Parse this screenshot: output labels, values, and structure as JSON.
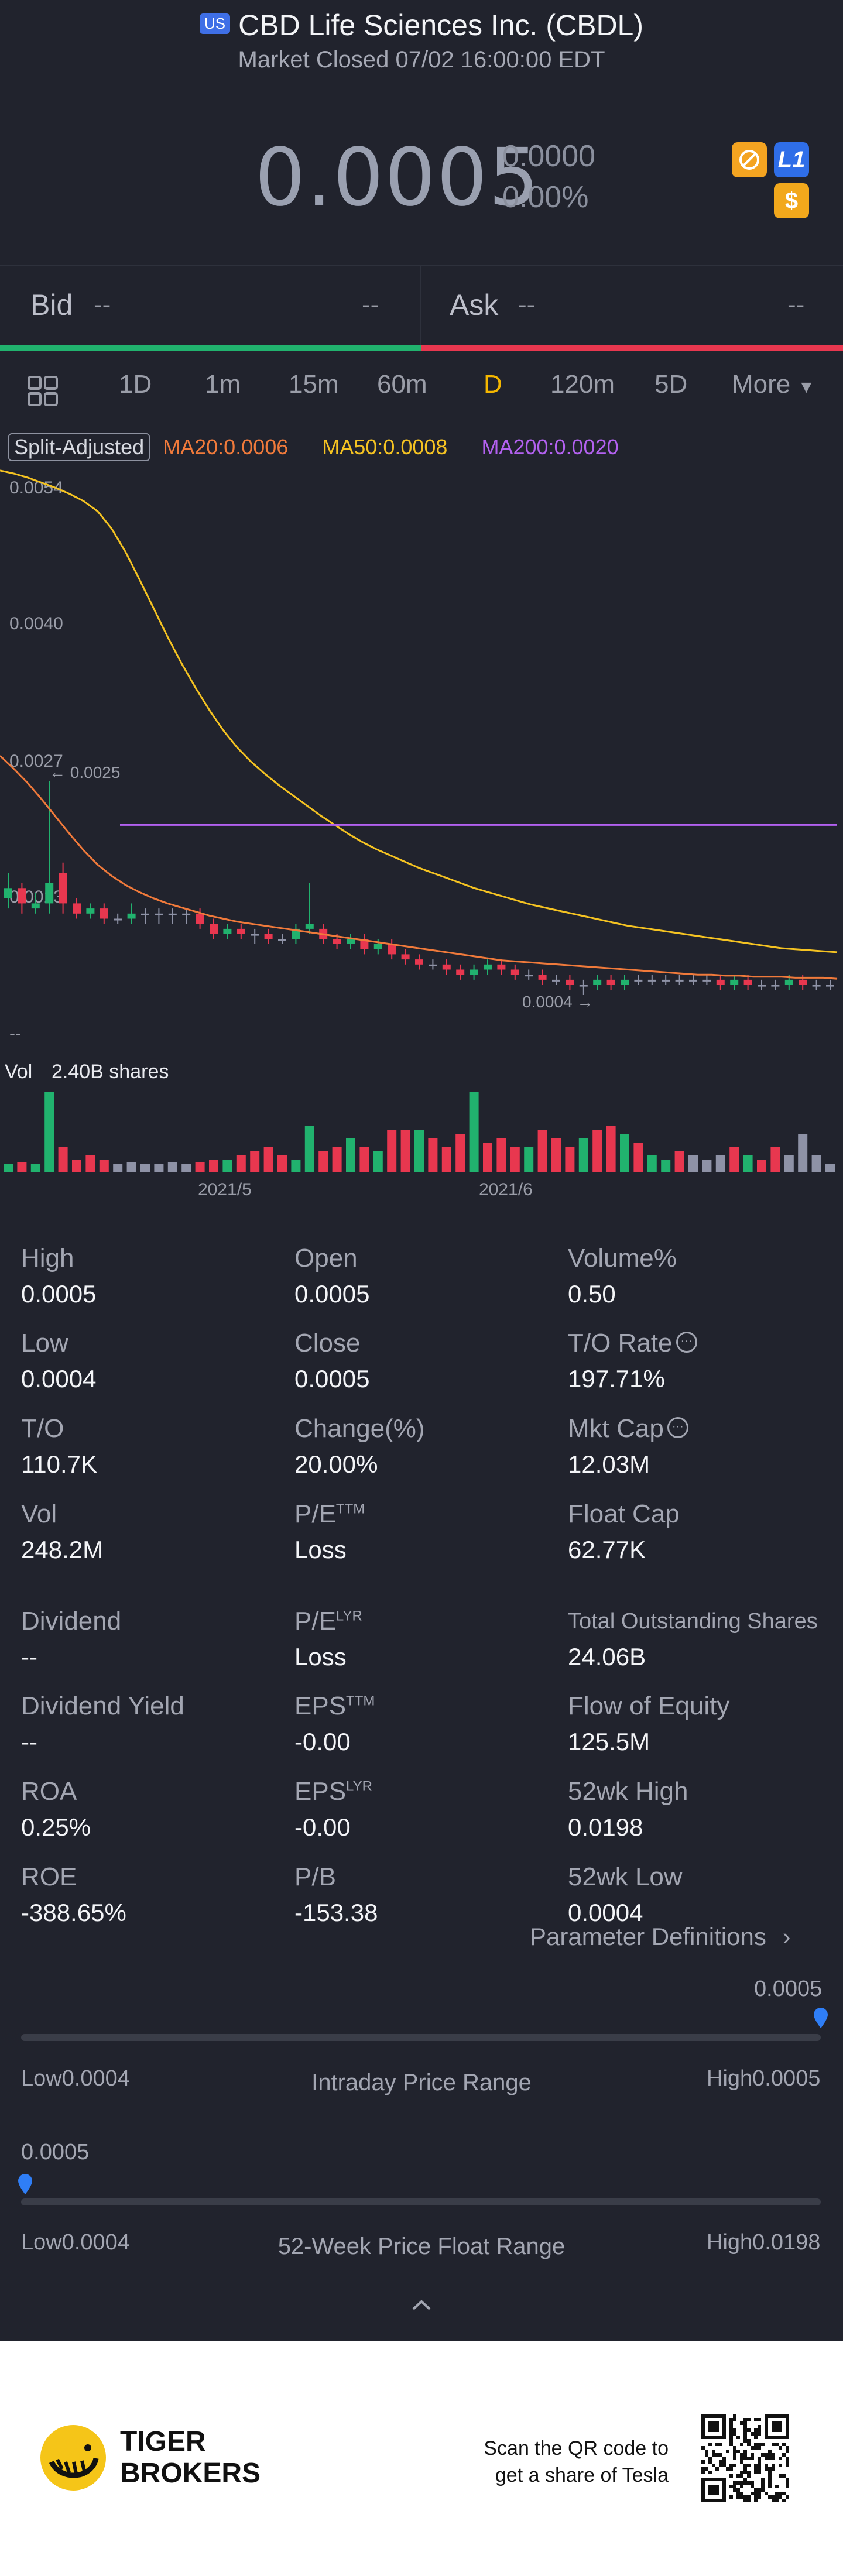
{
  "header": {
    "market_badge": "US",
    "title": "CBD Life Sciences Inc. (CBDL)",
    "status": "Market Closed 07/02 16:00:00 EDT"
  },
  "quote": {
    "price": "0.0005",
    "change": "0.0000",
    "change_pct": "0.00%",
    "badges": [
      "no-short-icon",
      "L1",
      "$"
    ],
    "badge_colors": [
      "#f4a421",
      "#2f6ee8",
      "#f2a81c"
    ]
  },
  "bidask": {
    "bid_label": "Bid",
    "bid_price": "--",
    "bid_size": "--",
    "ask_label": "Ask",
    "ask_price": "--",
    "ask_size": "--"
  },
  "tabs": {
    "items": [
      "1D",
      "1m",
      "15m",
      "60m",
      "D",
      "120m",
      "5D",
      "More"
    ],
    "active": "D"
  },
  "indicators": {
    "split": "Split-Adjusted",
    "ma20": "MA20:0.0006",
    "ma50": "MA50:0.0008",
    "ma200": "MA200:0.0020",
    "colors": {
      "ma20": "#f07a3b",
      "ma50": "#f5c322",
      "ma200": "#b361f0",
      "up": "#21b26e",
      "down": "#e8374f",
      "flat": "#8e92a6"
    }
  },
  "chart_data": {
    "type": "candlestick",
    "y_ticks": [
      "0.0054",
      "0.0040",
      "0.0027",
      "0.0013"
    ],
    "y_range": [
      0.0004,
      0.0054
    ],
    "high_marker": "0.0025",
    "low_marker": "0.0004",
    "x_ticks": [
      "2021/5",
      "2021/6"
    ],
    "empty_label": "--",
    "volume_label": "Vol",
    "volume_value": "2.40B shares",
    "ma200_level": 0.00207,
    "candles": [
      {
        "o": 0.00135,
        "c": 0.00145,
        "h": 0.0016,
        "l": 0.00125
      },
      {
        "o": 0.00145,
        "c": 0.0013,
        "h": 0.0015,
        "l": 0.0012
      },
      {
        "o": 0.00125,
        "c": 0.0013,
        "h": 0.0014,
        "l": 0.0012
      },
      {
        "o": 0.0013,
        "c": 0.0015,
        "h": 0.0025,
        "l": 0.0012
      },
      {
        "o": 0.0016,
        "c": 0.0013,
        "h": 0.0017,
        "l": 0.0012
      },
      {
        "o": 0.0013,
        "c": 0.0012,
        "h": 0.00135,
        "l": 0.00115
      },
      {
        "o": 0.0012,
        "c": 0.00125,
        "h": 0.0013,
        "l": 0.00115
      },
      {
        "o": 0.00125,
        "c": 0.00115,
        "h": 0.0013,
        "l": 0.0011
      },
      {
        "o": 0.00115,
        "c": 0.00115,
        "h": 0.0012,
        "l": 0.0011
      },
      {
        "o": 0.00115,
        "c": 0.0012,
        "h": 0.0013,
        "l": 0.0011
      },
      {
        "o": 0.0012,
        "c": 0.0012,
        "h": 0.00125,
        "l": 0.0011
      },
      {
        "o": 0.0012,
        "c": 0.0012,
        "h": 0.00125,
        "l": 0.0011
      },
      {
        "o": 0.0012,
        "c": 0.0012,
        "h": 0.00125,
        "l": 0.0011
      },
      {
        "o": 0.0012,
        "c": 0.0012,
        "h": 0.00125,
        "l": 0.0011
      },
      {
        "o": 0.0012,
        "c": 0.0011,
        "h": 0.00125,
        "l": 0.00105
      },
      {
        "o": 0.0011,
        "c": 0.001,
        "h": 0.00115,
        "l": 0.00095
      },
      {
        "o": 0.001,
        "c": 0.00105,
        "h": 0.0011,
        "l": 0.00095
      },
      {
        "o": 0.00105,
        "c": 0.001,
        "h": 0.0011,
        "l": 0.00095
      },
      {
        "o": 0.001,
        "c": 0.001,
        "h": 0.00105,
        "l": 0.0009
      },
      {
        "o": 0.001,
        "c": 0.00095,
        "h": 0.00105,
        "l": 0.0009
      },
      {
        "o": 0.00095,
        "c": 0.00095,
        "h": 0.001,
        "l": 0.0009
      },
      {
        "o": 0.00095,
        "c": 0.00105,
        "h": 0.0011,
        "l": 0.0009
      },
      {
        "o": 0.00105,
        "c": 0.0011,
        "h": 0.0015,
        "l": 0.001
      },
      {
        "o": 0.00105,
        "c": 0.00095,
        "h": 0.0011,
        "l": 0.0009
      },
      {
        "o": 0.00095,
        "c": 0.0009,
        "h": 0.001,
        "l": 0.00085
      },
      {
        "o": 0.0009,
        "c": 0.00095,
        "h": 0.001,
        "l": 0.00085
      },
      {
        "o": 0.00095,
        "c": 0.00085,
        "h": 0.001,
        "l": 0.0008
      },
      {
        "o": 0.00085,
        "c": 0.0009,
        "h": 0.00095,
        "l": 0.0008
      },
      {
        "o": 0.0009,
        "c": 0.0008,
        "h": 0.00095,
        "l": 0.00075
      },
      {
        "o": 0.0008,
        "c": 0.00075,
        "h": 0.00085,
        "l": 0.0007
      },
      {
        "o": 0.00075,
        "c": 0.0007,
        "h": 0.0008,
        "l": 0.00065
      },
      {
        "o": 0.0007,
        "c": 0.0007,
        "h": 0.00075,
        "l": 0.00065
      },
      {
        "o": 0.0007,
        "c": 0.00065,
        "h": 0.00075,
        "l": 0.0006
      },
      {
        "o": 0.00065,
        "c": 0.0006,
        "h": 0.0007,
        "l": 0.00055
      },
      {
        "o": 0.0006,
        "c": 0.00065,
        "h": 0.0007,
        "l": 0.00055
      },
      {
        "o": 0.00065,
        "c": 0.0007,
        "h": 0.00075,
        "l": 0.0006
      },
      {
        "o": 0.0007,
        "c": 0.00065,
        "h": 0.00075,
        "l": 0.0006
      },
      {
        "o": 0.00065,
        "c": 0.0006,
        "h": 0.0007,
        "l": 0.00055
      },
      {
        "o": 0.0006,
        "c": 0.0006,
        "h": 0.00065,
        "l": 0.00055
      },
      {
        "o": 0.0006,
        "c": 0.00055,
        "h": 0.00065,
        "l": 0.0005
      },
      {
        "o": 0.00055,
        "c": 0.00055,
        "h": 0.0006,
        "l": 0.0005
      },
      {
        "o": 0.00055,
        "c": 0.0005,
        "h": 0.0006,
        "l": 0.00045
      },
      {
        "o": 0.0005,
        "c": 0.0005,
        "h": 0.00055,
        "l": 0.0004
      },
      {
        "o": 0.0005,
        "c": 0.00055,
        "h": 0.0006,
        "l": 0.00045
      },
      {
        "o": 0.00055,
        "c": 0.0005,
        "h": 0.0006,
        "l": 0.00045
      },
      {
        "o": 0.0005,
        "c": 0.00055,
        "h": 0.0006,
        "l": 0.00045
      },
      {
        "o": 0.00055,
        "c": 0.00055,
        "h": 0.0006,
        "l": 0.0005
      },
      {
        "o": 0.00055,
        "c": 0.00055,
        "h": 0.0006,
        "l": 0.0005
      },
      {
        "o": 0.00055,
        "c": 0.00055,
        "h": 0.0006,
        "l": 0.0005
      },
      {
        "o": 0.00055,
        "c": 0.00055,
        "h": 0.0006,
        "l": 0.0005
      },
      {
        "o": 0.00055,
        "c": 0.00055,
        "h": 0.0006,
        "l": 0.0005
      },
      {
        "o": 0.00055,
        "c": 0.00055,
        "h": 0.0006,
        "l": 0.0005
      },
      {
        "o": 0.00055,
        "c": 0.0005,
        "h": 0.0006,
        "l": 0.00045
      },
      {
        "o": 0.0005,
        "c": 0.00055,
        "h": 0.0006,
        "l": 0.00045
      },
      {
        "o": 0.00055,
        "c": 0.0005,
        "h": 0.0006,
        "l": 0.00045
      },
      {
        "o": 0.0005,
        "c": 0.0005,
        "h": 0.00055,
        "l": 0.00045
      },
      {
        "o": 0.0005,
        "c": 0.0005,
        "h": 0.00055,
        "l": 0.00045
      },
      {
        "o": 0.0005,
        "c": 0.00055,
        "h": 0.0006,
        "l": 0.00045
      },
      {
        "o": 0.00055,
        "c": 0.0005,
        "h": 0.0006,
        "l": 0.00045
      },
      {
        "o": 0.0005,
        "c": 0.0005,
        "h": 0.00055,
        "l": 0.00045
      },
      {
        "o": 0.0005,
        "c": 0.0005,
        "h": 0.00055,
        "l": 0.00045
      }
    ],
    "ma20": [
      0.00275,
      0.00262,
      0.00248,
      0.00232,
      0.00215,
      0.00198,
      0.00182,
      0.00168,
      0.00157,
      0.00148,
      0.00141,
      0.00135,
      0.0013,
      0.00126,
      0.00122,
      0.00118,
      0.00115,
      0.00112,
      0.0011,
      0.00108,
      0.00106,
      0.00104,
      0.00102,
      0.001,
      0.00098,
      0.00096,
      0.00094,
      0.00092,
      0.0009,
      0.00088,
      0.00086,
      0.00084,
      0.00082,
      0.0008,
      0.00078,
      0.00076,
      0.00074,
      0.00073,
      0.00072,
      0.00071,
      0.0007,
      0.00069,
      0.00068,
      0.00067,
      0.00066,
      0.00065,
      0.00064,
      0.00063,
      0.00062,
      0.00061,
      0.0006,
      0.0006,
      0.00059,
      0.00059,
      0.00058,
      0.00058,
      0.00058,
      0.00057,
      0.00057,
      0.00057,
      0.00056
    ],
    "ma50": [
      0.00555,
      0.00552,
      0.00548,
      0.00543,
      0.00538,
      0.00532,
      0.00525,
      0.00515,
      0.00498,
      0.00475,
      0.00448,
      0.0042,
      0.00392,
      0.00366,
      0.00342,
      0.0032,
      0.003,
      0.00283,
      0.00269,
      0.00257,
      0.00246,
      0.00236,
      0.00226,
      0.00216,
      0.00207,
      0.00198,
      0.0019,
      0.00183,
      0.00177,
      0.00171,
      0.00165,
      0.0016,
      0.00155,
      0.0015,
      0.00145,
      0.00141,
      0.00137,
      0.00133,
      0.00129,
      0.00126,
      0.00123,
      0.0012,
      0.00117,
      0.00114,
      0.00111,
      0.00108,
      0.00106,
      0.00104,
      0.00102,
      0.001,
      0.00098,
      0.00096,
      0.00094,
      0.00092,
      0.0009,
      0.00088,
      0.00086,
      0.00085,
      0.00084,
      0.00083,
      0.00082
    ],
    "volume_bars": [
      {
        "v": 0.1,
        "d": "up"
      },
      {
        "v": 0.12,
        "d": "down"
      },
      {
        "v": 0.1,
        "d": "up"
      },
      {
        "v": 0.95,
        "d": "up"
      },
      {
        "v": 0.3,
        "d": "down"
      },
      {
        "v": 0.15,
        "d": "down"
      },
      {
        "v": 0.2,
        "d": "down"
      },
      {
        "v": 0.15,
        "d": "down"
      },
      {
        "v": 0.1,
        "d": "flat"
      },
      {
        "v": 0.12,
        "d": "flat"
      },
      {
        "v": 0.1,
        "d": "flat"
      },
      {
        "v": 0.1,
        "d": "flat"
      },
      {
        "v": 0.12,
        "d": "flat"
      },
      {
        "v": 0.1,
        "d": "flat"
      },
      {
        "v": 0.12,
        "d": "down"
      },
      {
        "v": 0.15,
        "d": "down"
      },
      {
        "v": 0.15,
        "d": "up"
      },
      {
        "v": 0.2,
        "d": "down"
      },
      {
        "v": 0.25,
        "d": "down"
      },
      {
        "v": 0.3,
        "d": "down"
      },
      {
        "v": 0.2,
        "d": "down"
      },
      {
        "v": 0.15,
        "d": "up"
      },
      {
        "v": 0.55,
        "d": "up"
      },
      {
        "v": 0.25,
        "d": "down"
      },
      {
        "v": 0.3,
        "d": "down"
      },
      {
        "v": 0.4,
        "d": "up"
      },
      {
        "v": 0.3,
        "d": "down"
      },
      {
        "v": 0.25,
        "d": "up"
      },
      {
        "v": 0.5,
        "d": "down"
      },
      {
        "v": 0.5,
        "d": "down"
      },
      {
        "v": 0.5,
        "d": "up"
      },
      {
        "v": 0.4,
        "d": "down"
      },
      {
        "v": 0.3,
        "d": "down"
      },
      {
        "v": 0.45,
        "d": "down"
      },
      {
        "v": 0.95,
        "d": "up"
      },
      {
        "v": 0.35,
        "d": "down"
      },
      {
        "v": 0.4,
        "d": "down"
      },
      {
        "v": 0.3,
        "d": "down"
      },
      {
        "v": 0.3,
        "d": "up"
      },
      {
        "v": 0.5,
        "d": "down"
      },
      {
        "v": 0.4,
        "d": "down"
      },
      {
        "v": 0.3,
        "d": "down"
      },
      {
        "v": 0.4,
        "d": "up"
      },
      {
        "v": 0.5,
        "d": "down"
      },
      {
        "v": 0.55,
        "d": "down"
      },
      {
        "v": 0.45,
        "d": "up"
      },
      {
        "v": 0.35,
        "d": "down"
      },
      {
        "v": 0.2,
        "d": "up"
      },
      {
        "v": 0.15,
        "d": "up"
      },
      {
        "v": 0.25,
        "d": "down"
      },
      {
        "v": 0.2,
        "d": "flat"
      },
      {
        "v": 0.15,
        "d": "flat"
      },
      {
        "v": 0.2,
        "d": "flat"
      },
      {
        "v": 0.3,
        "d": "down"
      },
      {
        "v": 0.2,
        "d": "up"
      },
      {
        "v": 0.15,
        "d": "down"
      },
      {
        "v": 0.3,
        "d": "down"
      },
      {
        "v": 0.2,
        "d": "flat"
      },
      {
        "v": 0.45,
        "d": "flat"
      },
      {
        "v": 0.2,
        "d": "flat"
      },
      {
        "v": 0.1,
        "d": "flat"
      }
    ]
  },
  "stats": [
    {
      "label": "High",
      "value": "0.0005",
      "sup": "",
      "info": false
    },
    {
      "label": "Open",
      "value": "0.0005",
      "sup": "",
      "info": false
    },
    {
      "label": "Volume%",
      "value": "0.50",
      "sup": "",
      "info": false
    },
    {
      "label": "Low",
      "value": "0.0004",
      "sup": "",
      "info": false
    },
    {
      "label": "Close",
      "value": "0.0005",
      "sup": "",
      "info": false
    },
    {
      "label": "T/O Rate",
      "value": "197.71%",
      "sup": "",
      "info": true
    },
    {
      "label": "T/O",
      "value": "110.7K",
      "sup": "",
      "info": false
    },
    {
      "label": "Change(%)",
      "value": "20.00%",
      "sup": "",
      "info": false
    },
    {
      "label": "Mkt Cap",
      "value": "12.03M",
      "sup": "",
      "info": true
    },
    {
      "label": "Vol",
      "value": "248.2M",
      "sup": "",
      "info": false
    },
    {
      "label": "P/E",
      "value": "Loss",
      "sup": "TTM",
      "info": false
    },
    {
      "label": "Float Cap",
      "value": "62.77K",
      "sup": "",
      "info": false
    },
    {
      "label": "Dividend",
      "value": "--",
      "sup": "",
      "info": false
    },
    {
      "label": "P/E",
      "value": "Loss",
      "sup": "LYR",
      "info": false
    },
    {
      "label": "Total Outstanding Shares",
      "value": "24.06B",
      "sup": "",
      "info": false
    },
    {
      "label": "Dividend Yield",
      "value": "--",
      "sup": "",
      "info": false
    },
    {
      "label": "EPS",
      "value": "-0.00",
      "sup": "TTM",
      "info": false
    },
    {
      "label": "Flow of Equity",
      "value": "125.5M",
      "sup": "",
      "info": false
    },
    {
      "label": "ROA",
      "value": "0.25%",
      "sup": "",
      "info": false
    },
    {
      "label": "EPS",
      "value": "-0.00",
      "sup": "LYR",
      "info": false
    },
    {
      "label": "52wk High",
      "value": "0.0198",
      "sup": "",
      "info": false
    },
    {
      "label": "ROE",
      "value": "-388.65%",
      "sup": "",
      "info": false
    },
    {
      "label": "P/B",
      "value": "-153.38",
      "sup": "",
      "info": false
    },
    {
      "label": "52wk Low",
      "value": "0.0004",
      "sup": "",
      "info": false
    }
  ],
  "param_link": "Parameter Definitions",
  "intraday": {
    "title": "Intraday Price Range",
    "current": "0.0005",
    "low_label": "Low",
    "low": "0.0004",
    "high_label": "High",
    "high": "0.0005",
    "position": 1.0
  },
  "week52": {
    "title": "52-Week Price Float Range",
    "current": "0.0005",
    "low_label": "Low",
    "low": "0.0004",
    "high_label": "High",
    "high": "0.0198",
    "position": 0.005
  },
  "footer": {
    "brand_line1": "TIGER",
    "brand_line2": "BROKERS",
    "scan_line1": "Scan the QR code to",
    "scan_line2": "get a share of Tesla"
  }
}
